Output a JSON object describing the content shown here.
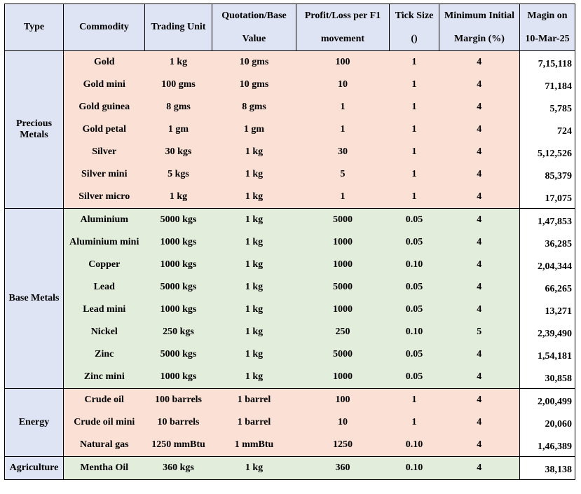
{
  "headers": {
    "type": "Type",
    "commodity": "Commodity",
    "trading_unit": "Trading Unit",
    "quotation_line1": "Quotation/Base",
    "quotation_line2": "Value",
    "pl_line1": "Profit/Loss per F1",
    "pl_line2": "movement",
    "tick_line1": "Tick Size",
    "tick_line2": "()",
    "min_line1": "Minimum Initial",
    "min_line2": "Margin (%)",
    "margin_line1": "Magin on",
    "margin_line2": "10-Mar-25"
  },
  "groups": [
    {
      "type": "Precious Metals",
      "color": "#fbe1d5",
      "rows": [
        {
          "commodity": "Gold",
          "unit": "1 kg",
          "quote": "10 gms",
          "pl": "100",
          "tick": "1",
          "min": "4",
          "margin": "7,15,118"
        },
        {
          "commodity": "Gold mini",
          "unit": "100 gms",
          "quote": "10 gms",
          "pl": "10",
          "tick": "1",
          "min": "4",
          "margin": "71,184"
        },
        {
          "commodity": "Gold guinea",
          "unit": "8 gms",
          "quote": "8 gms",
          "pl": "1",
          "tick": "1",
          "min": "4",
          "margin": "5,785"
        },
        {
          "commodity": "Gold petal",
          "unit": "1 gm",
          "quote": "1 gm",
          "pl": "1",
          "tick": "1",
          "min": "4",
          "margin": "724"
        },
        {
          "commodity": "Silver",
          "unit": "30 kgs",
          "quote": "1 kg",
          "pl": "30",
          "tick": "1",
          "min": "4",
          "margin": "5,12,526"
        },
        {
          "commodity": "Silver mini",
          "unit": "5 kgs",
          "quote": "1 kg",
          "pl": "5",
          "tick": "1",
          "min": "4",
          "margin": "85,379"
        },
        {
          "commodity": "Silver micro",
          "unit": "1 kg",
          "quote": "1 kg",
          "pl": "1",
          "tick": "1",
          "min": "4",
          "margin": "17,075"
        }
      ]
    },
    {
      "type": "Base Metals",
      "color": "#e3eddb",
      "rows": [
        {
          "commodity": "Aluminium",
          "unit": "5000 kgs",
          "quote": "1 kg",
          "pl": "5000",
          "tick": "0.05",
          "min": "4",
          "margin": "1,47,853"
        },
        {
          "commodity": "Aluminium mini",
          "unit": "1000 kgs",
          "quote": "1 kg",
          "pl": "1000",
          "tick": "0.05",
          "min": "4",
          "margin": "36,285"
        },
        {
          "commodity": "Copper",
          "unit": "1000 kgs",
          "quote": "1 kg",
          "pl": "1000",
          "tick": "0.10",
          "min": "4",
          "margin": "2,04,344"
        },
        {
          "commodity": "Lead",
          "unit": "5000 kgs",
          "quote": "1 kg",
          "pl": "5000",
          "tick": "0.05",
          "min": "4",
          "margin": "66,265"
        },
        {
          "commodity": "Lead mini",
          "unit": "1000 kgs",
          "quote": "1 kg",
          "pl": "1000",
          "tick": "0.05",
          "min": "4",
          "margin": "13,271"
        },
        {
          "commodity": "Nickel",
          "unit": "250 kgs",
          "quote": "1 kg",
          "pl": "250",
          "tick": "0.10",
          "min": "5",
          "margin": "2,39,490"
        },
        {
          "commodity": "Zinc",
          "unit": "5000 kgs",
          "quote": "1 kg",
          "pl": "5000",
          "tick": "0.05",
          "min": "4",
          "margin": "1,54,181"
        },
        {
          "commodity": "Zinc mini",
          "unit": "1000 kgs",
          "quote": "1 kg",
          "pl": "1000",
          "tick": "0.05",
          "min": "4",
          "margin": "30,858"
        }
      ]
    },
    {
      "type": "Energy",
      "color": "#fbe1d5",
      "rows": [
        {
          "commodity": "Crude oil",
          "unit": "100 barrels",
          "quote": "1 barrel",
          "pl": "100",
          "tick": "1",
          "min": "4",
          "margin": "2,00,499"
        },
        {
          "commodity": "Crude oil mini",
          "unit": "10 barrels",
          "quote": "1 barrel",
          "pl": "10",
          "tick": "1",
          "min": "4",
          "margin": "20,060"
        },
        {
          "commodity": "Natural gas",
          "unit": "1250 mmBtu",
          "quote": "1 mmBtu",
          "pl": "1250",
          "tick": "0.10",
          "min": "4",
          "margin": "1,46,389"
        }
      ]
    },
    {
      "type": "Agriculture",
      "color": "#e3eddb",
      "rows": [
        {
          "commodity": "Mentha Oil",
          "unit": "360 kgs",
          "quote": "1 kg",
          "pl": "360",
          "tick": "0.10",
          "min": "4",
          "margin": "38,138"
        }
      ]
    }
  ]
}
